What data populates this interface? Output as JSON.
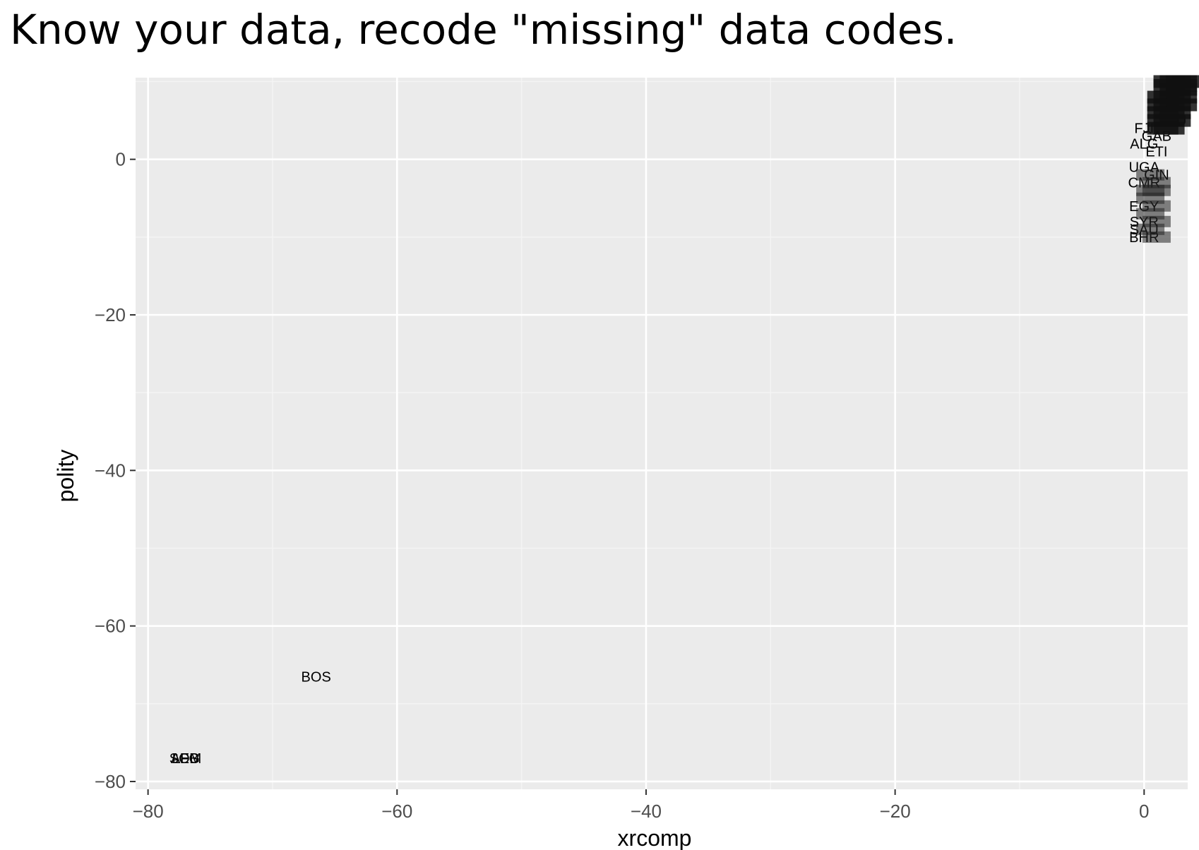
{
  "slide": {
    "title": "Know your data, recode \"missing\" data codes."
  },
  "chart_data": {
    "type": "scatter",
    "marker": "text-label",
    "xlabel": "xrcomp",
    "ylabel": "polity",
    "xlim": [
      -81,
      3.5
    ],
    "ylim": [
      -81,
      10.5
    ],
    "xticks": [
      -80,
      -60,
      -40,
      -20,
      0
    ],
    "yticks": [
      0,
      -20,
      -40,
      -60,
      -80
    ],
    "x_tick_labels": [
      "−80",
      "−60",
      "−40",
      "−20",
      "0"
    ],
    "y_tick_labels": [
      "0",
      "−20",
      "−40",
      "−60",
      "−80"
    ],
    "grid": true,
    "colors": {
      "panel": "#ebebeb",
      "grid_major": "#ffffff",
      "grid_minor": "#f4f4f4",
      "text": "#000000",
      "tick_text": "#4d4d4d"
    },
    "points": [
      {
        "x": -66.5,
        "y": -66.5,
        "label": "BOS"
      },
      {
        "x": -77,
        "y": -77,
        "label": "SOM"
      },
      {
        "x": -77,
        "y": -77,
        "label": "LEB"
      },
      {
        "x": -77,
        "y": -77,
        "label": "AFG"
      },
      {
        "x": 0,
        "y": 4,
        "label": "FJI"
      },
      {
        "x": 0,
        "y": 2,
        "label": "ALG"
      },
      {
        "x": 1,
        "y": 3,
        "label": "GAB"
      },
      {
        "x": 1,
        "y": 1,
        "label": "ETI"
      },
      {
        "x": 3,
        "y": 5,
        "label": "U"
      },
      {
        "x": 0,
        "y": -1,
        "label": "UGA"
      },
      {
        "x": 1,
        "y": -2,
        "label": "GIN"
      },
      {
        "x": 0,
        "y": -3,
        "label": "CMR"
      },
      {
        "x": 0,
        "y": -6,
        "label": "EGY"
      },
      {
        "x": 0,
        "y": -8,
        "label": "SYR"
      },
      {
        "x": 0,
        "y": -9,
        "label": "SAU"
      },
      {
        "x": 0,
        "y": -10,
        "label": "BHR"
      }
    ]
  }
}
